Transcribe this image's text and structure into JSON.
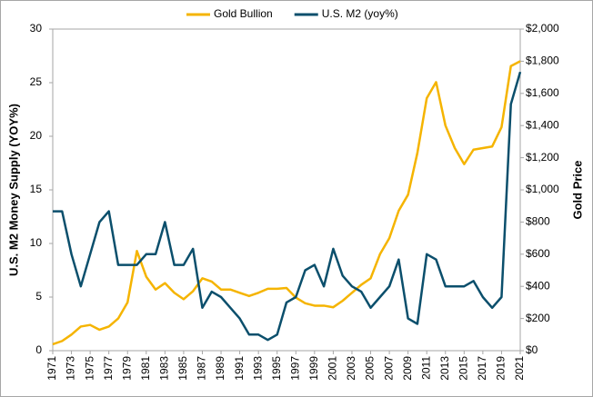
{
  "chart_data": {
    "type": "line",
    "y_label": "U.S. M2 Money Supply (YOY%)",
    "y2_label": "Gold Price",
    "x": [
      1971,
      1972,
      1973,
      1974,
      1975,
      1976,
      1977,
      1978,
      1979,
      1980,
      1981,
      1982,
      1983,
      1984,
      1985,
      1986,
      1987,
      1988,
      1989,
      1990,
      1991,
      1992,
      1993,
      1994,
      1995,
      1996,
      1997,
      1998,
      1999,
      2000,
      2001,
      2002,
      2003,
      2004,
      2005,
      2006,
      2007,
      2008,
      2009,
      2010,
      2011,
      2012,
      2013,
      2014,
      2015,
      2016,
      2017,
      2018,
      2019,
      2020,
      2021
    ],
    "series": [
      {
        "name": "Gold Bullion",
        "color": "#f5b400",
        "axis": "y2",
        "values": [
          40,
          60,
          100,
          150,
          160,
          130,
          150,
          200,
          300,
          620,
          460,
          380,
          420,
          360,
          320,
          370,
          450,
          430,
          380,
          380,
          360,
          340,
          360,
          385,
          385,
          390,
          330,
          295,
          280,
          280,
          270,
          310,
          360,
          410,
          450,
          600,
          700,
          870,
          970,
          1230,
          1570,
          1670,
          1400,
          1260,
          1160,
          1250,
          1260,
          1270,
          1390,
          1770,
          1800
        ]
      },
      {
        "name": "U.S. M2 (yoy%)",
        "color": "#0b4f6c",
        "axis": "y",
        "values": [
          13,
          13,
          9,
          6,
          9,
          12,
          13,
          8,
          8,
          8,
          9,
          9,
          12,
          8,
          8,
          9.5,
          4,
          5.5,
          5,
          4,
          3,
          1.5,
          1.5,
          1,
          1.5,
          4.5,
          5,
          7.5,
          8,
          6,
          9.5,
          7,
          6,
          5.5,
          4,
          5,
          6,
          8.5,
          3,
          2.5,
          9,
          8.5,
          6,
          6,
          6,
          6.5,
          5,
          4,
          5,
          23,
          26
        ]
      }
    ],
    "xlim": [
      1971,
      2021
    ],
    "xticks": [
      1971,
      1973,
      1975,
      1977,
      1979,
      1981,
      1983,
      1985,
      1987,
      1989,
      1991,
      1993,
      1995,
      1997,
      1999,
      2001,
      2003,
      2005,
      2007,
      2009,
      2011,
      2013,
      2015,
      2017,
      2019,
      2021
    ],
    "ylim": [
      0,
      30
    ],
    "yticks": [
      0,
      5,
      10,
      15,
      20,
      25,
      30
    ],
    "y2lim": [
      0,
      2000
    ],
    "y2ticks": [
      {
        "value": 0,
        "label": "$0"
      },
      {
        "value": 200,
        "label": "$200"
      },
      {
        "value": 400,
        "label": "$400"
      },
      {
        "value": 600,
        "label": "$600"
      },
      {
        "value": 800,
        "label": "$800"
      },
      {
        "value": 1000,
        "label": "$1,000"
      },
      {
        "value": 1200,
        "label": "$1,200"
      },
      {
        "value": 1400,
        "label": "$1,400"
      },
      {
        "value": 1600,
        "label": "$1,600"
      },
      {
        "value": 1800,
        "label": "$1,800"
      },
      {
        "value": 2000,
        "label": "$2,000"
      }
    ],
    "grid": false,
    "legend": "top"
  }
}
